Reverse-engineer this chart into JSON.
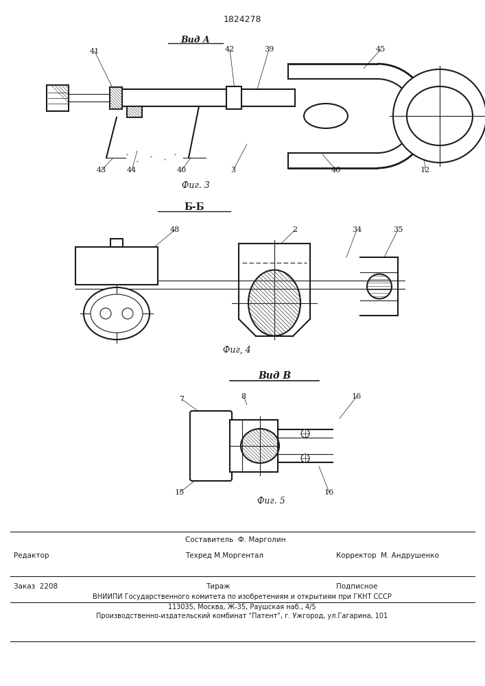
{
  "patent_number": "1824278",
  "bg_color": "#ffffff",
  "line_color": "#1a1a1a",
  "fig3_label": "Фиг. 3",
  "fig4_label": "Фиг, 4",
  "fig5_label": "Фиг. 5",
  "vid_a_label": "Вид A",
  "b_b_label": "Б-Б",
  "vid_b_label": "Вид В",
  "footer": {
    "line1_left": "Редактор",
    "line1_center1": "Составитель  Ф. Марголин",
    "line1_center2": "Техред М.Моргентал",
    "line1_right": "Корректор  М. Андрушенко",
    "line2_col1": "Заказ  2208",
    "line2_col2": "Тираж",
    "line2_col3": "Подписное",
    "line3": "ВНИИПИ Государственного комитета по изобретениям и открытиям при ГКНТ СССР",
    "line4": "113035, Москва, Ж-35, Раушская наб., 4/5",
    "line5": "Производственно-издательский комбинат \"Патент\", г. Ужгород, ул.Гагарина, 101"
  }
}
